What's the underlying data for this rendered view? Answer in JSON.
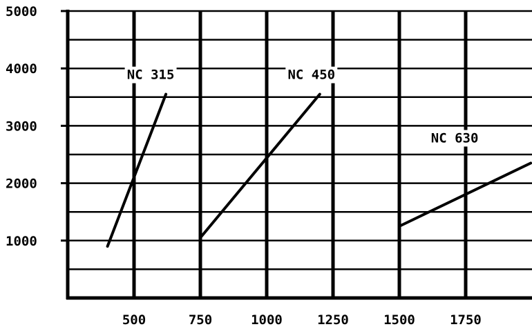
{
  "chart_data": {
    "type": "line",
    "title": "",
    "xlabel": "",
    "ylabel": "",
    "xlim": [
      250,
      2000
    ],
    "ylim": [
      0,
      5000
    ],
    "x_ticks": [
      500,
      750,
      1000,
      1250,
      1500,
      1750
    ],
    "x_tick_labels": [
      "500",
      "750",
      "1000",
      "1250",
      "1500",
      "1750"
    ],
    "y_ticks": [
      1000,
      2000,
      3000,
      4000,
      5000
    ],
    "y_tick_labels": [
      "1000",
      "2000",
      "3000",
      "4000",
      "5000"
    ],
    "x_gridlines": [
      500,
      750,
      1000,
      1250,
      1500,
      1750
    ],
    "y_gridlines": [
      500,
      1000,
      1500,
      2000,
      2500,
      3000,
      3500,
      4000,
      4500,
      5000
    ],
    "grid": true,
    "legend": "none",
    "series": [
      {
        "name": "NC 315",
        "x": [
          400,
          620
        ],
        "y": [
          900,
          3550
        ]
      },
      {
        "name": "NC 450",
        "x": [
          750,
          1200
        ],
        "y": [
          1050,
          3550
        ]
      },
      {
        "name": "NC 630",
        "x": [
          1500,
          1995
        ],
        "y": [
          1250,
          2350
        ]
      }
    ],
    "colors": {
      "line": "#000000",
      "grid": "#000000",
      "background": "#ffffff"
    }
  }
}
